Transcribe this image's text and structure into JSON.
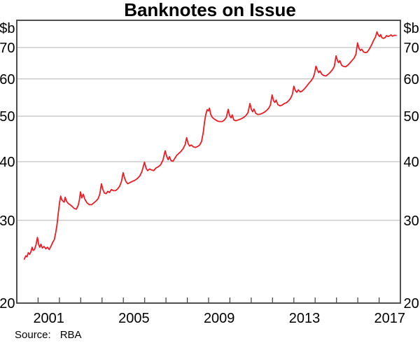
{
  "chart_data": {
    "type": "line",
    "title": "Banknotes on Issue",
    "unit_label": "$b",
    "source": {
      "label": "Source:",
      "value": "RBA"
    },
    "colors": {
      "line": "#ee1c25",
      "grid": "#b3b3b3",
      "frame": "#3c3c3c",
      "text": "#000000",
      "background": "#ffffff"
    },
    "y_axis": {
      "scale": "log",
      "range": [
        20,
        80
      ],
      "ticks": [
        20,
        30,
        40,
        50,
        60,
        70
      ],
      "gridlines": [
        30,
        40,
        50,
        60,
        70
      ],
      "label_sides": "both"
    },
    "x_axis": {
      "range": [
        2000,
        2018
      ],
      "ticks": [
        2001,
        2002,
        2003,
        2004,
        2005,
        2006,
        2007,
        2008,
        2009,
        2010,
        2011,
        2012,
        2013,
        2014,
        2015,
        2016,
        2017
      ],
      "labels": [
        2001,
        2005,
        2009,
        2013,
        2017
      ],
      "label_offset_years": 0.5
    },
    "series": [
      {
        "name": "Banknotes on Issue",
        "color": "#ee1c25",
        "points": [
          [
            2000.35,
            24.8
          ],
          [
            2000.42,
            25.2
          ],
          [
            2000.48,
            25.1
          ],
          [
            2000.54,
            25.6
          ],
          [
            2000.6,
            25.4
          ],
          [
            2000.66,
            25.7
          ],
          [
            2000.72,
            26.3
          ],
          [
            2000.77,
            25.9
          ],
          [
            2000.83,
            26.0
          ],
          [
            2000.9,
            26.6
          ],
          [
            2000.97,
            27.6
          ],
          [
            2001.03,
            26.6
          ],
          [
            2001.08,
            26.3
          ],
          [
            2001.13,
            26.7
          ],
          [
            2001.2,
            26.2
          ],
          [
            2001.28,
            26.4
          ],
          [
            2001.36,
            26.1
          ],
          [
            2001.44,
            26.3
          ],
          [
            2001.52,
            26.0
          ],
          [
            2001.6,
            26.4
          ],
          [
            2001.68,
            26.9
          ],
          [
            2001.76,
            27.3
          ],
          [
            2001.83,
            28.3
          ],
          [
            2001.89,
            29.4
          ],
          [
            2001.95,
            31.2
          ],
          [
            2002.01,
            32.8
          ],
          [
            2002.06,
            33.8
          ],
          [
            2002.11,
            33.2
          ],
          [
            2002.16,
            33.0
          ],
          [
            2002.22,
            32.8
          ],
          [
            2002.27,
            33.6
          ],
          [
            2002.33,
            33.0
          ],
          [
            2002.41,
            32.6
          ],
          [
            2002.5,
            32.4
          ],
          [
            2002.6,
            32.1
          ],
          [
            2002.7,
            31.8
          ],
          [
            2002.8,
            31.7
          ],
          [
            2002.88,
            32.3
          ],
          [
            2002.94,
            33.2
          ],
          [
            2002.99,
            34.5
          ],
          [
            2003.05,
            33.5
          ],
          [
            2003.12,
            34.1
          ],
          [
            2003.19,
            33.3
          ],
          [
            2003.29,
            32.7
          ],
          [
            2003.4,
            32.4
          ],
          [
            2003.51,
            32.4
          ],
          [
            2003.62,
            32.7
          ],
          [
            2003.72,
            33.0
          ],
          [
            2003.82,
            33.4
          ],
          [
            2003.9,
            34.2
          ],
          [
            2003.97,
            35.9
          ],
          [
            2004.04,
            34.9
          ],
          [
            2004.11,
            34.3
          ],
          [
            2004.19,
            34.2
          ],
          [
            2004.27,
            34.6
          ],
          [
            2004.35,
            34.4
          ],
          [
            2004.44,
            34.9
          ],
          [
            2004.53,
            34.7
          ],
          [
            2004.63,
            34.7
          ],
          [
            2004.73,
            35.0
          ],
          [
            2004.83,
            35.5
          ],
          [
            2004.91,
            36.3
          ],
          [
            2004.99,
            37.9
          ],
          [
            2005.06,
            36.9
          ],
          [
            2005.12,
            36.3
          ],
          [
            2005.2,
            35.9
          ],
          [
            2005.3,
            36.1
          ],
          [
            2005.41,
            36.3
          ],
          [
            2005.53,
            36.5
          ],
          [
            2005.65,
            36.8
          ],
          [
            2005.77,
            37.3
          ],
          [
            2005.87,
            38.1
          ],
          [
            2005.99,
            39.9
          ],
          [
            2006.07,
            38.7
          ],
          [
            2006.14,
            38.3
          ],
          [
            2006.23,
            38.6
          ],
          [
            2006.33,
            38.4
          ],
          [
            2006.43,
            38.3
          ],
          [
            2006.53,
            38.8
          ],
          [
            2006.63,
            39.0
          ],
          [
            2006.75,
            39.4
          ],
          [
            2006.86,
            40.3
          ],
          [
            2006.96,
            42.2
          ],
          [
            2007.04,
            41.0
          ],
          [
            2007.1,
            40.4
          ],
          [
            2007.16,
            41.0
          ],
          [
            2007.24,
            40.2
          ],
          [
            2007.33,
            40.1
          ],
          [
            2007.42,
            40.7
          ],
          [
            2007.51,
            41.3
          ],
          [
            2007.61,
            41.7
          ],
          [
            2007.71,
            42.1
          ],
          [
            2007.81,
            42.7
          ],
          [
            2007.9,
            43.5
          ],
          [
            2007.97,
            45.0
          ],
          [
            2008.04,
            43.7
          ],
          [
            2008.11,
            43.2
          ],
          [
            2008.19,
            43.4
          ],
          [
            2008.29,
            43.0
          ],
          [
            2008.39,
            42.9
          ],
          [
            2008.49,
            43.1
          ],
          [
            2008.58,
            43.4
          ],
          [
            2008.67,
            44.2
          ],
          [
            2008.75,
            46.2
          ],
          [
            2008.81,
            48.6
          ],
          [
            2008.87,
            50.4
          ],
          [
            2008.93,
            51.6
          ],
          [
            2008.99,
            51.3
          ],
          [
            2009.04,
            52.0
          ],
          [
            2009.1,
            50.5
          ],
          [
            2009.16,
            49.8
          ],
          [
            2009.24,
            49.4
          ],
          [
            2009.33,
            49.1
          ],
          [
            2009.43,
            48.8
          ],
          [
            2009.53,
            48.7
          ],
          [
            2009.63,
            48.7
          ],
          [
            2009.73,
            49.0
          ],
          [
            2009.83,
            49.7
          ],
          [
            2009.92,
            51.7
          ],
          [
            2009.99,
            50.1
          ],
          [
            2010.05,
            49.6
          ],
          [
            2010.11,
            50.3
          ],
          [
            2010.18,
            49.1
          ],
          [
            2010.28,
            48.9
          ],
          [
            2010.39,
            49.1
          ],
          [
            2010.5,
            49.3
          ],
          [
            2010.62,
            49.6
          ],
          [
            2010.74,
            50.1
          ],
          [
            2010.85,
            50.9
          ],
          [
            2010.94,
            53.2
          ],
          [
            2011.01,
            51.6
          ],
          [
            2011.07,
            51.1
          ],
          [
            2011.13,
            51.8
          ],
          [
            2011.21,
            50.7
          ],
          [
            2011.31,
            50.4
          ],
          [
            2011.42,
            50.5
          ],
          [
            2011.52,
            50.7
          ],
          [
            2011.62,
            51.0
          ],
          [
            2011.72,
            51.4
          ],
          [
            2011.82,
            52.0
          ],
          [
            2011.9,
            52.8
          ],
          [
            2011.98,
            55.5
          ],
          [
            2012.05,
            53.9
          ],
          [
            2012.11,
            53.5
          ],
          [
            2012.17,
            54.1
          ],
          [
            2012.25,
            52.9
          ],
          [
            2012.35,
            52.6
          ],
          [
            2012.45,
            52.8
          ],
          [
            2012.55,
            53.2
          ],
          [
            2012.65,
            53.4
          ],
          [
            2012.75,
            53.9
          ],
          [
            2012.85,
            54.6
          ],
          [
            2012.93,
            55.6
          ],
          [
            2013.0,
            57.9
          ],
          [
            2013.07,
            56.7
          ],
          [
            2013.14,
            56.2
          ],
          [
            2013.21,
            56.9
          ],
          [
            2013.3,
            56.3
          ],
          [
            2013.4,
            56.6
          ],
          [
            2013.5,
            57.2
          ],
          [
            2013.6,
            57.9
          ],
          [
            2013.7,
            58.7
          ],
          [
            2013.8,
            59.4
          ],
          [
            2013.9,
            60.3
          ],
          [
            2013.97,
            61.6
          ],
          [
            2014.04,
            63.9
          ],
          [
            2014.11,
            62.6
          ],
          [
            2014.17,
            61.9
          ],
          [
            2014.23,
            62.4
          ],
          [
            2014.31,
            61.4
          ],
          [
            2014.41,
            61.0
          ],
          [
            2014.51,
            60.9
          ],
          [
            2014.61,
            61.4
          ],
          [
            2014.71,
            62.0
          ],
          [
            2014.81,
            62.8
          ],
          [
            2014.9,
            63.8
          ],
          [
            2014.98,
            67.2
          ],
          [
            2015.05,
            65.6
          ],
          [
            2015.1,
            65.0
          ],
          [
            2015.16,
            65.6
          ],
          [
            2015.24,
            64.2
          ],
          [
            2015.33,
            63.8
          ],
          [
            2015.43,
            63.7
          ],
          [
            2015.53,
            64.2
          ],
          [
            2015.63,
            64.9
          ],
          [
            2015.73,
            65.7
          ],
          [
            2015.83,
            66.5
          ],
          [
            2015.91,
            67.7
          ],
          [
            2015.99,
            71.6
          ],
          [
            2016.06,
            69.7
          ],
          [
            2016.12,
            69.0
          ],
          [
            2016.19,
            69.4
          ],
          [
            2016.27,
            68.5
          ],
          [
            2016.35,
            68.3
          ],
          [
            2016.43,
            68.4
          ],
          [
            2016.51,
            69.1
          ],
          [
            2016.59,
            70.1
          ],
          [
            2016.67,
            71.3
          ],
          [
            2016.75,
            72.6
          ],
          [
            2016.83,
            73.7
          ],
          [
            2016.9,
            75.6
          ],
          [
            2016.96,
            74.4
          ],
          [
            2017.02,
            73.9
          ],
          [
            2017.07,
            74.6
          ],
          [
            2017.13,
            73.5
          ],
          [
            2017.2,
            73.2
          ],
          [
            2017.28,
            73.5
          ],
          [
            2017.35,
            74.2
          ],
          [
            2017.42,
            73.9
          ],
          [
            2017.49,
            74.1
          ],
          [
            2017.56,
            74.5
          ],
          [
            2017.63,
            74.0
          ],
          [
            2017.71,
            74.3
          ],
          [
            2017.8,
            74.3
          ]
        ]
      }
    ]
  }
}
